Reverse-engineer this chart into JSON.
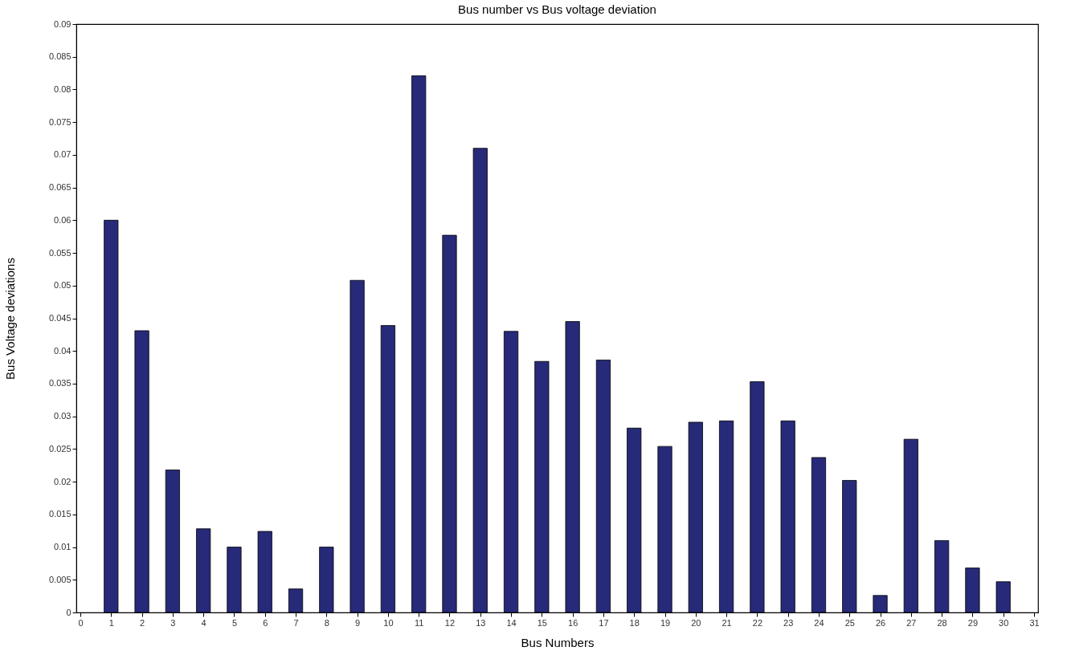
{
  "chart_data": {
    "type": "bar",
    "title": "Bus number vs Bus voltage deviation",
    "xlabel": "Bus Numbers",
    "ylabel": "Bus Voltage deviations",
    "x": [
      1,
      2,
      3,
      4,
      5,
      6,
      7,
      8,
      9,
      10,
      11,
      12,
      13,
      14,
      15,
      16,
      17,
      18,
      19,
      20,
      21,
      22,
      23,
      24,
      25,
      26,
      27,
      28,
      29,
      30
    ],
    "values": [
      0.06,
      0.0431,
      0.0218,
      0.0128,
      0.01,
      0.0124,
      0.0036,
      0.01,
      0.0508,
      0.0439,
      0.0821,
      0.0577,
      0.071,
      0.043,
      0.0384,
      0.0445,
      0.0386,
      0.0282,
      0.0254,
      0.0291,
      0.0293,
      0.0353,
      0.0293,
      0.0237,
      0.0202,
      0.0026,
      0.0265,
      0.011,
      0.0068,
      0.0047
    ],
    "color": "#262a78",
    "xlim": [
      0,
      31
    ],
    "xticks": [
      0,
      1,
      2,
      3,
      4,
      5,
      6,
      7,
      8,
      9,
      10,
      11,
      12,
      13,
      14,
      15,
      16,
      17,
      18,
      19,
      20,
      21,
      22,
      23,
      24,
      25,
      26,
      27,
      28,
      29,
      30,
      31
    ],
    "ylim": [
      0,
      0.09
    ],
    "yticks": [
      0,
      0.005,
      0.01,
      0.015,
      0.02,
      0.025,
      0.03,
      0.035,
      0.04,
      0.045,
      0.05,
      0.055,
      0.06,
      0.065,
      0.07,
      0.075,
      0.08,
      0.085,
      0.09
    ],
    "grid": false
  }
}
